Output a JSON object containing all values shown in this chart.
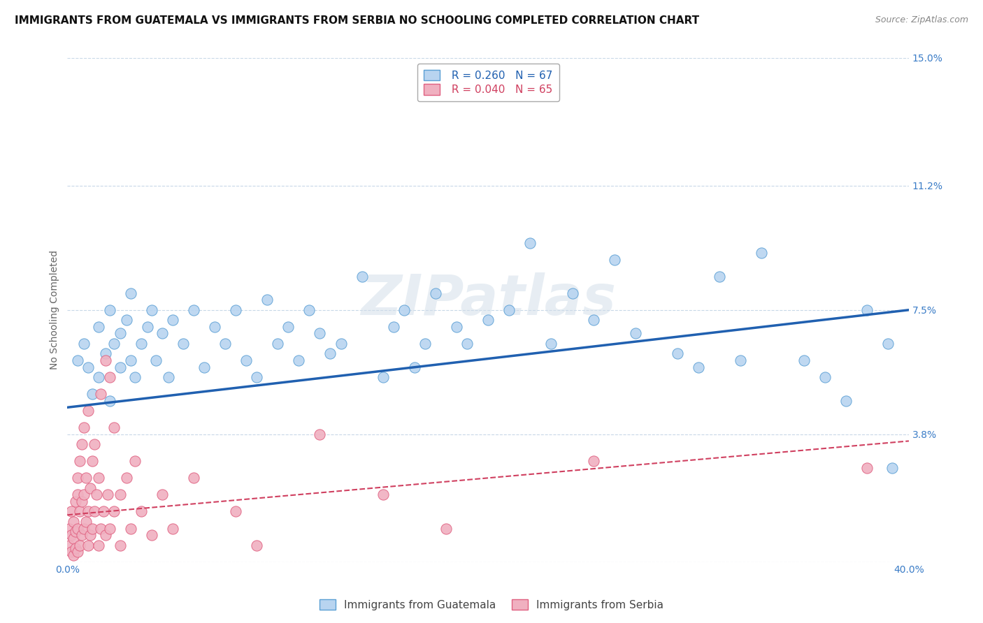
{
  "title": "IMMIGRANTS FROM GUATEMALA VS IMMIGRANTS FROM SERBIA NO SCHOOLING COMPLETED CORRELATION CHART",
  "source": "Source: ZipAtlas.com",
  "ylabel": "No Schooling Completed",
  "legend1_label": "Immigrants from Guatemala",
  "legend2_label": "Immigrants from Serbia",
  "R1": 0.26,
  "N1": 67,
  "R2": 0.04,
  "N2": 65,
  "xlim": [
    0.0,
    0.4
  ],
  "ylim": [
    0.0,
    0.15
  ],
  "yticks": [
    0.0,
    0.038,
    0.075,
    0.112,
    0.15
  ],
  "ytick_labels": [
    "",
    "3.8%",
    "7.5%",
    "11.2%",
    "15.0%"
  ],
  "color_blue": "#b8d4f0",
  "color_blue_edge": "#5a9fd4",
  "color_blue_line": "#2060b0",
  "color_pink": "#f0b0c0",
  "color_pink_edge": "#e06080",
  "color_pink_line": "#d04060",
  "watermark": "ZIPatlas",
  "blue_trend_x0": 0.0,
  "blue_trend_y0": 0.046,
  "blue_trend_x1": 0.4,
  "blue_trend_y1": 0.075,
  "pink_trend_x0": 0.0,
  "pink_trend_y0": 0.014,
  "pink_trend_x1": 0.4,
  "pink_trend_y1": 0.036,
  "blue_scatter_x": [
    0.005,
    0.008,
    0.01,
    0.012,
    0.015,
    0.015,
    0.018,
    0.02,
    0.02,
    0.022,
    0.025,
    0.025,
    0.028,
    0.03,
    0.03,
    0.032,
    0.035,
    0.038,
    0.04,
    0.042,
    0.045,
    0.048,
    0.05,
    0.055,
    0.06,
    0.065,
    0.07,
    0.075,
    0.08,
    0.085,
    0.09,
    0.095,
    0.1,
    0.105,
    0.11,
    0.115,
    0.12,
    0.125,
    0.13,
    0.14,
    0.15,
    0.155,
    0.16,
    0.165,
    0.17,
    0.175,
    0.185,
    0.19,
    0.2,
    0.21,
    0.22,
    0.23,
    0.24,
    0.25,
    0.26,
    0.27,
    0.29,
    0.3,
    0.31,
    0.32,
    0.33,
    0.35,
    0.36,
    0.37,
    0.38,
    0.39,
    0.392
  ],
  "blue_scatter_y": [
    0.06,
    0.065,
    0.058,
    0.05,
    0.07,
    0.055,
    0.062,
    0.075,
    0.048,
    0.065,
    0.068,
    0.058,
    0.072,
    0.06,
    0.08,
    0.055,
    0.065,
    0.07,
    0.075,
    0.06,
    0.068,
    0.055,
    0.072,
    0.065,
    0.075,
    0.058,
    0.07,
    0.065,
    0.075,
    0.06,
    0.055,
    0.078,
    0.065,
    0.07,
    0.06,
    0.075,
    0.068,
    0.062,
    0.065,
    0.085,
    0.055,
    0.07,
    0.075,
    0.058,
    0.065,
    0.08,
    0.07,
    0.065,
    0.072,
    0.075,
    0.095,
    0.065,
    0.08,
    0.072,
    0.09,
    0.068,
    0.062,
    0.058,
    0.085,
    0.06,
    0.092,
    0.06,
    0.055,
    0.048,
    0.075,
    0.065,
    0.028
  ],
  "pink_scatter_x": [
    0.001,
    0.001,
    0.002,
    0.002,
    0.002,
    0.003,
    0.003,
    0.003,
    0.004,
    0.004,
    0.004,
    0.005,
    0.005,
    0.005,
    0.005,
    0.006,
    0.006,
    0.006,
    0.007,
    0.007,
    0.007,
    0.008,
    0.008,
    0.008,
    0.009,
    0.009,
    0.01,
    0.01,
    0.01,
    0.011,
    0.011,
    0.012,
    0.012,
    0.013,
    0.013,
    0.014,
    0.015,
    0.015,
    0.016,
    0.016,
    0.017,
    0.018,
    0.018,
    0.019,
    0.02,
    0.02,
    0.022,
    0.022,
    0.025,
    0.025,
    0.028,
    0.03,
    0.032,
    0.035,
    0.04,
    0.045,
    0.05,
    0.06,
    0.08,
    0.09,
    0.12,
    0.15,
    0.18,
    0.25,
    0.38
  ],
  "pink_scatter_y": [
    0.005,
    0.01,
    0.003,
    0.008,
    0.015,
    0.002,
    0.007,
    0.012,
    0.004,
    0.009,
    0.018,
    0.003,
    0.01,
    0.02,
    0.025,
    0.005,
    0.015,
    0.03,
    0.008,
    0.018,
    0.035,
    0.01,
    0.02,
    0.04,
    0.012,
    0.025,
    0.005,
    0.015,
    0.045,
    0.008,
    0.022,
    0.01,
    0.03,
    0.015,
    0.035,
    0.02,
    0.005,
    0.025,
    0.01,
    0.05,
    0.015,
    0.008,
    0.06,
    0.02,
    0.01,
    0.055,
    0.015,
    0.04,
    0.02,
    0.005,
    0.025,
    0.01,
    0.03,
    0.015,
    0.008,
    0.02,
    0.01,
    0.025,
    0.015,
    0.005,
    0.038,
    0.02,
    0.01,
    0.03,
    0.028
  ],
  "background_color": "#ffffff",
  "grid_color": "#c8d8e8",
  "title_fontsize": 11,
  "axis_label_fontsize": 10,
  "tick_fontsize": 10,
  "legend_fontsize": 11
}
